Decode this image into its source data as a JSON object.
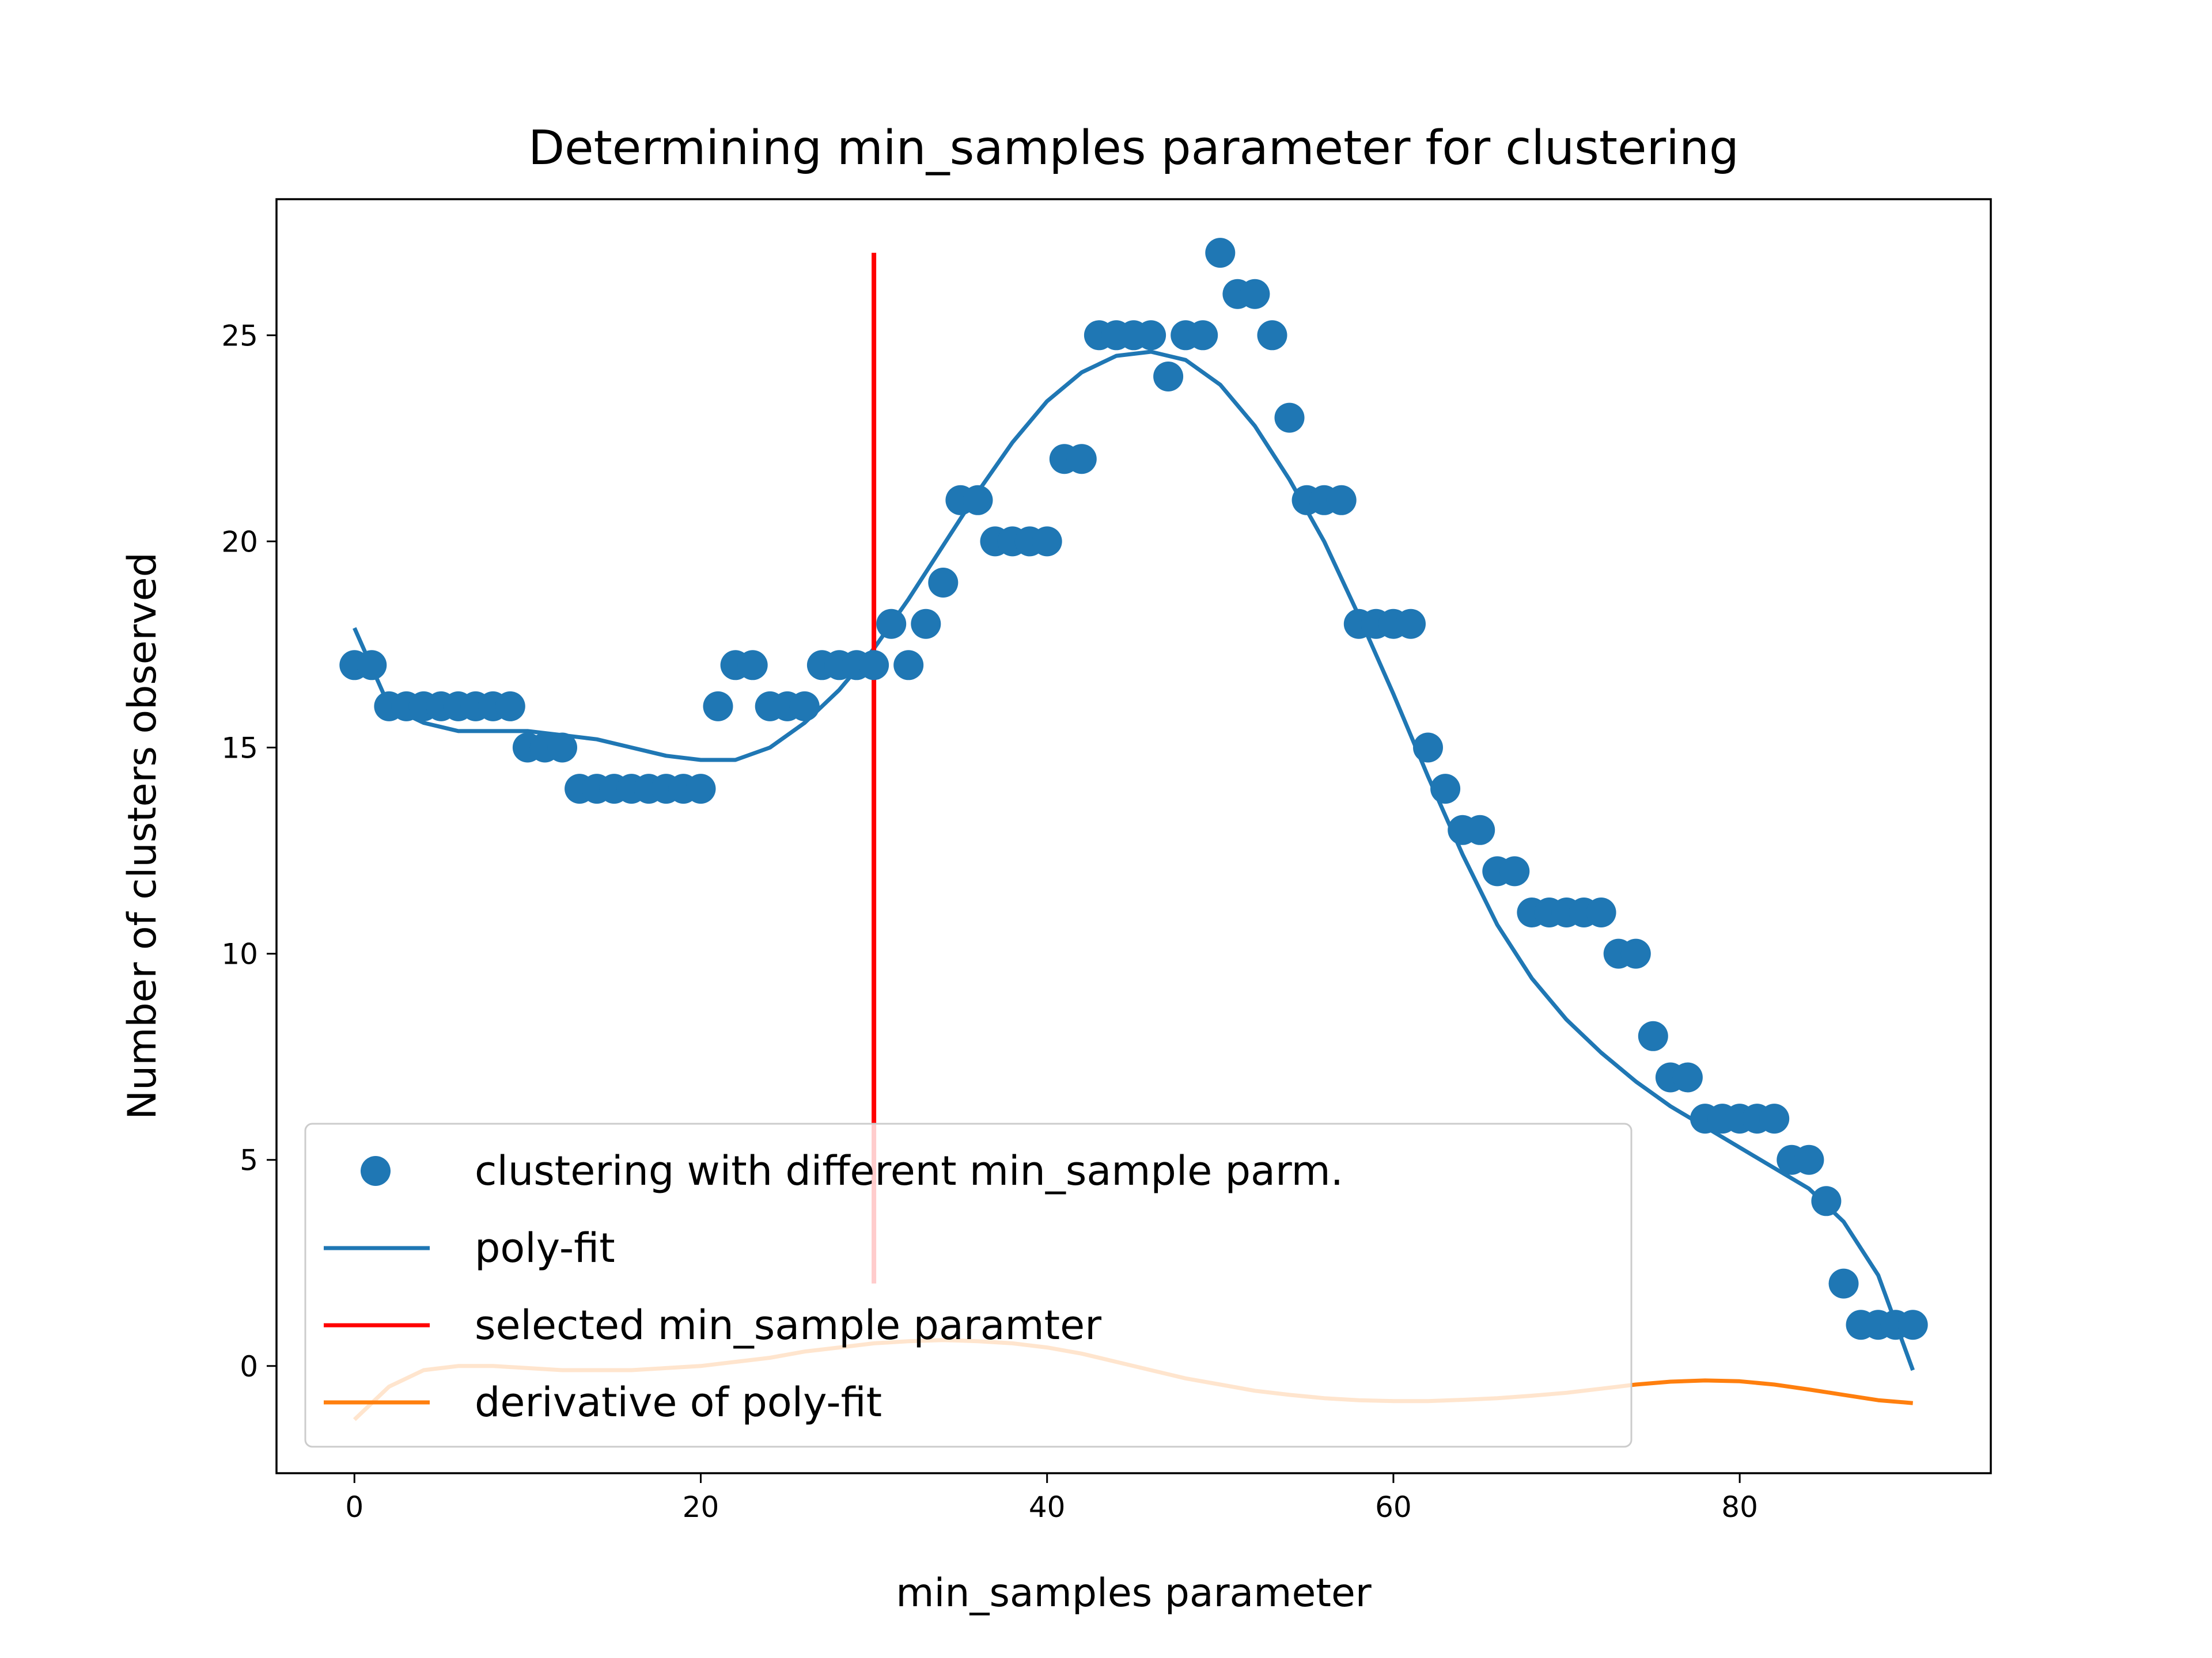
{
  "chart_data": {
    "type": "scatter",
    "title": "Determining min_samples parameter for clustering",
    "xlabel": "min_samples parameter",
    "ylabel": "Number of clusters observed",
    "xlim": [
      -4.5,
      94.5
    ],
    "ylim": [
      -2.6,
      28.3
    ],
    "xticks": [
      0,
      20,
      40,
      60,
      80
    ],
    "yticks": [
      0,
      5,
      10,
      15,
      20,
      25
    ],
    "legend_position": "lower-left",
    "series": [
      {
        "name": "clustering with different min_sample parm.",
        "kind": "scatter",
        "color": "#1f77b4",
        "x": [
          0,
          1,
          2,
          3,
          4,
          5,
          6,
          7,
          8,
          9,
          10,
          11,
          12,
          13,
          14,
          15,
          16,
          17,
          18,
          19,
          20,
          21,
          22,
          23,
          24,
          25,
          26,
          27,
          28,
          29,
          30,
          31,
          32,
          33,
          34,
          35,
          36,
          37,
          38,
          39,
          40,
          41,
          42,
          43,
          44,
          45,
          46,
          47,
          48,
          49,
          50,
          51,
          52,
          53,
          54,
          55,
          56,
          57,
          58,
          59,
          60,
          61,
          62,
          63,
          64,
          65,
          66,
          67,
          68,
          69,
          70,
          71,
          72,
          73,
          74,
          75,
          76,
          77,
          78,
          79,
          80,
          81,
          82,
          83,
          84,
          85,
          86,
          87,
          88,
          89,
          90
        ],
        "y": [
          17,
          17,
          16,
          16,
          16,
          16,
          16,
          16,
          16,
          16,
          15,
          15,
          15,
          14,
          14,
          14,
          14,
          14,
          14,
          14,
          14,
          16,
          17,
          17,
          16,
          16,
          16,
          17,
          17,
          17,
          17,
          18,
          17,
          18,
          19,
          21,
          21,
          20,
          20,
          20,
          20,
          22,
          22,
          25,
          25,
          25,
          25,
          24,
          25,
          25,
          27,
          26,
          26,
          25,
          23,
          21,
          21,
          21,
          18,
          18,
          18,
          18,
          15,
          14,
          13,
          13,
          12,
          12,
          11,
          11,
          11,
          11,
          11,
          10,
          10,
          8,
          7,
          7,
          6,
          6,
          6,
          6,
          6,
          5,
          5,
          4,
          2,
          1,
          1,
          1,
          1
        ]
      },
      {
        "name": "poly-fit",
        "kind": "line",
        "color": "#1f77b4",
        "x": [
          0,
          2,
          4,
          6,
          8,
          10,
          12,
          14,
          16,
          18,
          20,
          22,
          24,
          26,
          28,
          30,
          32,
          34,
          36,
          38,
          40,
          42,
          44,
          46,
          48,
          50,
          52,
          54,
          56,
          58,
          60,
          62,
          64,
          66,
          68,
          70,
          72,
          74,
          76,
          78,
          80,
          82,
          84,
          86,
          88,
          90
        ],
        "y": [
          17.9,
          16.0,
          15.6,
          15.4,
          15.4,
          15.4,
          15.3,
          15.2,
          15.0,
          14.8,
          14.7,
          14.7,
          15.0,
          15.6,
          16.4,
          17.4,
          18.6,
          19.9,
          21.2,
          22.4,
          23.4,
          24.1,
          24.5,
          24.6,
          24.4,
          23.8,
          22.8,
          21.5,
          20.0,
          18.2,
          16.3,
          14.3,
          12.4,
          10.7,
          9.4,
          8.4,
          7.6,
          6.9,
          6.3,
          5.8,
          5.3,
          4.8,
          4.3,
          3.5,
          2.2,
          -0.1
        ]
      },
      {
        "name": "selected min_sample paramter",
        "kind": "vline",
        "color": "#ff0000",
        "x": 30,
        "y_range": [
          2,
          27
        ]
      },
      {
        "name": "derivative of poly-fit",
        "kind": "line",
        "color": "#ff7f0e",
        "x": [
          0,
          2,
          4,
          6,
          8,
          10,
          12,
          14,
          16,
          18,
          20,
          22,
          24,
          26,
          28,
          30,
          32,
          34,
          36,
          38,
          40,
          42,
          44,
          46,
          48,
          50,
          52,
          54,
          56,
          58,
          60,
          62,
          64,
          66,
          68,
          70,
          72,
          74,
          76,
          78,
          80,
          82,
          84,
          86,
          88,
          90
        ],
        "y": [
          -1.3,
          -0.5,
          -0.1,
          0.0,
          0.0,
          -0.05,
          -0.1,
          -0.1,
          -0.1,
          -0.05,
          0.0,
          0.1,
          0.2,
          0.35,
          0.45,
          0.55,
          0.6,
          0.63,
          0.6,
          0.55,
          0.45,
          0.3,
          0.1,
          -0.1,
          -0.3,
          -0.45,
          -0.6,
          -0.7,
          -0.78,
          -0.83,
          -0.85,
          -0.85,
          -0.82,
          -0.78,
          -0.72,
          -0.65,
          -0.55,
          -0.45,
          -0.38,
          -0.35,
          -0.37,
          -0.45,
          -0.57,
          -0.7,
          -0.83,
          -0.9
        ]
      }
    ]
  }
}
